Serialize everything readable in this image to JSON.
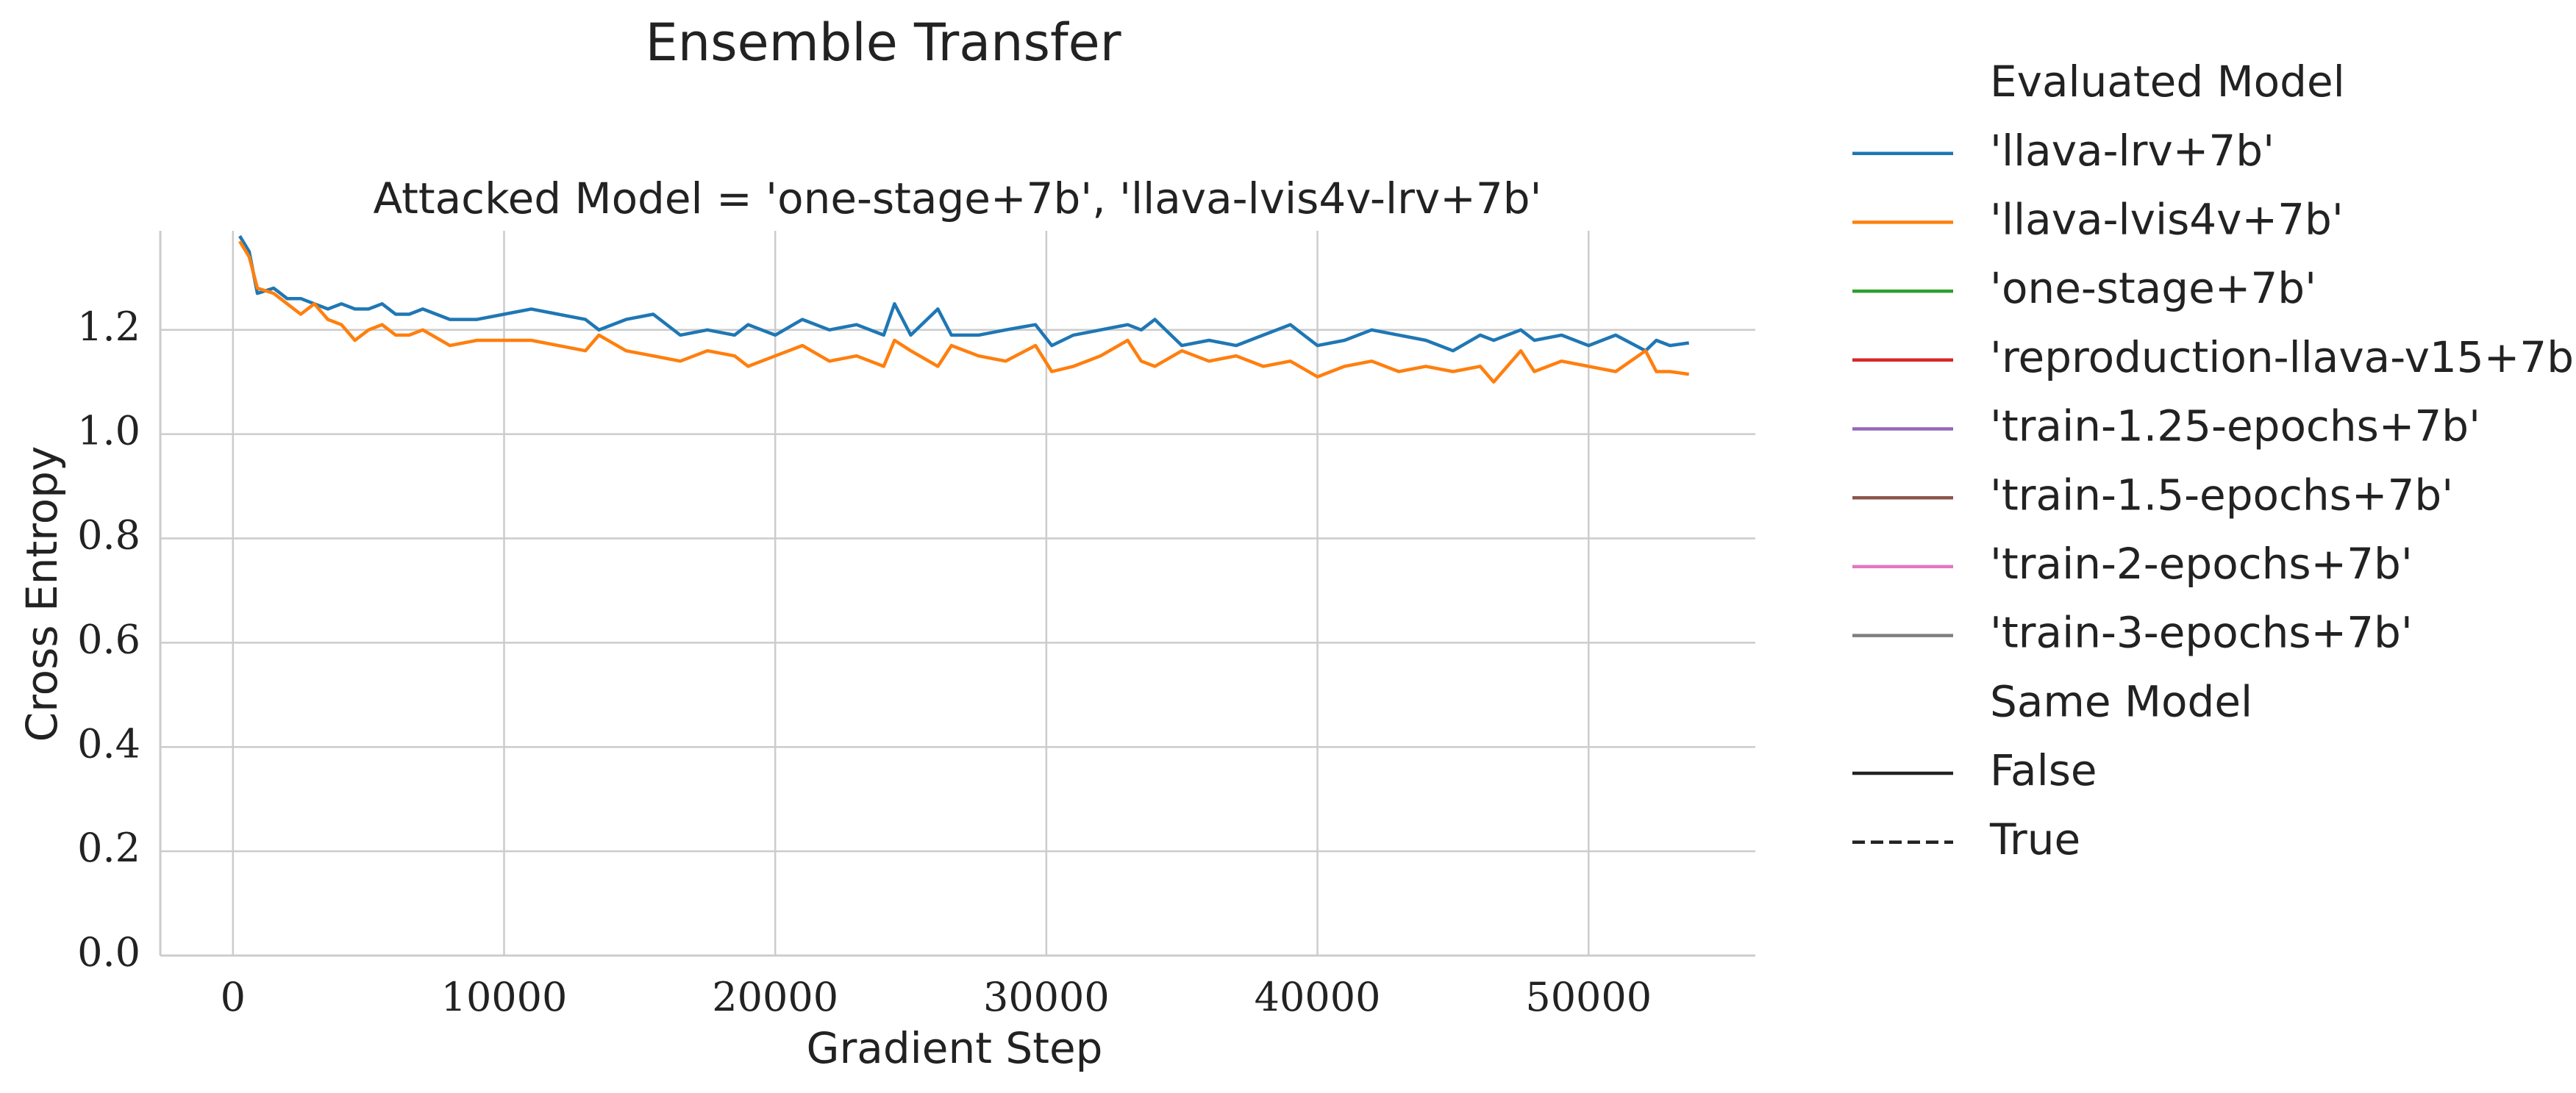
{
  "chart_data": {
    "type": "line",
    "title": "Ensemble Transfer",
    "subtitle": "Attacked Model = 'one-stage+7b', 'llava-lvis4v-lrv+7b'",
    "xlabel": "Gradient Step",
    "ylabel": "Cross Entropy",
    "xlim": [
      -2680,
      56150
    ],
    "ylim": [
      0,
      1.39
    ],
    "xticks": [
      0,
      10000,
      20000,
      30000,
      40000,
      50000
    ],
    "yticks": [
      {
        "value": 0,
        "label": "0.0"
      },
      0.2,
      0.4,
      0.6,
      0.8,
      {
        "value": 1,
        "label": "1.0"
      },
      1.2
    ],
    "grid": true,
    "x": [
      250,
      600,
      900,
      1500,
      2000,
      2500,
      3000,
      3500,
      4000,
      4500,
      5000,
      5500,
      6000,
      6500,
      7000,
      8000,
      9000,
      10000,
      11000,
      12000,
      13000,
      13500,
      14500,
      15500,
      16500,
      17500,
      18500,
      19000,
      20000,
      21000,
      22000,
      23000,
      24000,
      24400,
      25000,
      26000,
      26500,
      27500,
      28500,
      29600,
      30200,
      31000,
      32000,
      33000,
      33500,
      34000,
      35000,
      36000,
      37000,
      38000,
      39000,
      40000,
      41000,
      42000,
      43000,
      44000,
      45000,
      46000,
      46500,
      47500,
      48000,
      49000,
      50000,
      51000,
      52100,
      52500,
      53000,
      53700
    ],
    "series": [
      {
        "color": "#1f77b4",
        "values": [
          1.38,
          1.35,
          1.27,
          1.28,
          1.26,
          1.26,
          1.25,
          1.24,
          1.25,
          1.24,
          1.24,
          1.25,
          1.23,
          1.23,
          1.24,
          1.22,
          1.22,
          1.23,
          1.24,
          1.23,
          1.22,
          1.2,
          1.22,
          1.23,
          1.19,
          1.2,
          1.19,
          1.21,
          1.19,
          1.22,
          1.2,
          1.21,
          1.19,
          1.25,
          1.19,
          1.24,
          1.19,
          1.19,
          1.2,
          1.21,
          1.17,
          1.19,
          1.2,
          1.21,
          1.2,
          1.22,
          1.17,
          1.18,
          1.17,
          1.19,
          1.21,
          1.17,
          1.18,
          1.2,
          1.19,
          1.18,
          1.16,
          1.19,
          1.18,
          1.2,
          1.18,
          1.19,
          1.17,
          1.19,
          1.16,
          1.18,
          1.17,
          1.175
        ]
      },
      {
        "color": "#ff7f0e",
        "values": [
          1.37,
          1.34,
          1.28,
          1.27,
          1.25,
          1.23,
          1.25,
          1.22,
          1.21,
          1.18,
          1.2,
          1.21,
          1.19,
          1.19,
          1.2,
          1.17,
          1.18,
          1.18,
          1.18,
          1.17,
          1.16,
          1.19,
          1.16,
          1.15,
          1.14,
          1.16,
          1.15,
          1.13,
          1.15,
          1.17,
          1.14,
          1.15,
          1.13,
          1.18,
          1.16,
          1.13,
          1.17,
          1.15,
          1.14,
          1.17,
          1.12,
          1.13,
          1.15,
          1.18,
          1.14,
          1.13,
          1.16,
          1.14,
          1.15,
          1.13,
          1.14,
          1.11,
          1.13,
          1.14,
          1.12,
          1.13,
          1.12,
          1.13,
          1.1,
          1.16,
          1.12,
          1.14,
          1.13,
          1.12,
          1.16,
          1.12,
          1.12,
          1.115
        ]
      }
    ],
    "legend": [
      {
        "title": "Evaluated Model",
        "entries": [
          {
            "label": "'llava-lrv+7b'",
            "color": "#1f77b4",
            "linestyle": "solid"
          },
          {
            "label": "'llava-lvis4v+7b'",
            "color": "#ff7f0e",
            "linestyle": "solid"
          },
          {
            "label": "'one-stage+7b'",
            "color": "#2ca02c",
            "linestyle": "solid"
          },
          {
            "label": "'reproduction-llava-v15+7b'",
            "color": "#d62728",
            "linestyle": "solid"
          },
          {
            "label": "'train-1.25-epochs+7b'",
            "color": "#9467bd",
            "linestyle": "solid"
          },
          {
            "label": "'train-1.5-epochs+7b'",
            "color": "#8c564b",
            "linestyle": "solid"
          },
          {
            "label": "'train-2-epochs+7b'",
            "color": "#e377c2",
            "linestyle": "solid"
          },
          {
            "label": "'train-3-epochs+7b'",
            "color": "#7f7f7f",
            "linestyle": "solid"
          }
        ]
      },
      {
        "title": "Same Model",
        "entries": [
          {
            "label": "False",
            "color": "#222222",
            "linestyle": "solid"
          },
          {
            "label": "True",
            "color": "#222222",
            "linestyle": "dashed"
          }
        ]
      }
    ]
  }
}
